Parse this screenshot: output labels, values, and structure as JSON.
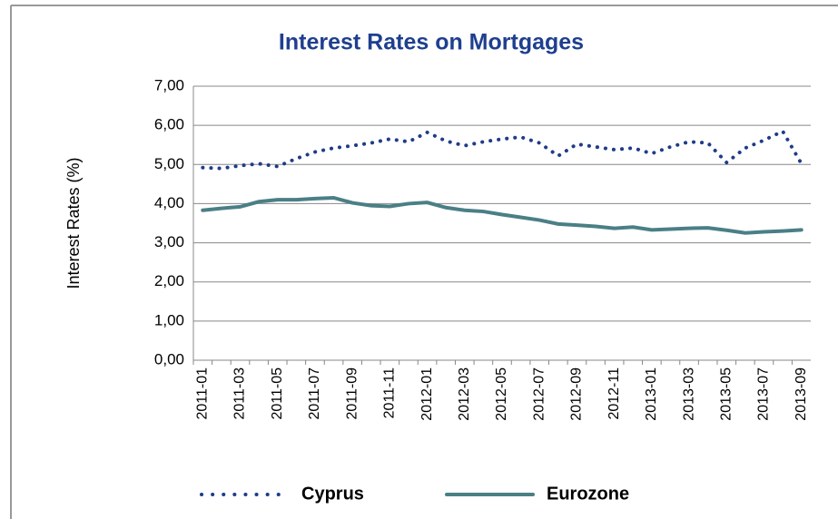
{
  "chart_data": {
    "type": "line",
    "title": "Interest Rates on Mortgages",
    "y_label": "Interest Rates (%)",
    "categories": [
      "2011-01",
      null,
      "2011-03",
      null,
      "2011-05",
      null,
      "2011-07",
      null,
      "2011-09",
      null,
      "2011-11",
      null,
      "2012-01",
      null,
      "2012-03",
      null,
      "2012-05",
      null,
      "2012-07",
      null,
      "2012-09",
      null,
      "2012-11",
      null,
      "2013-01",
      null,
      "2013-03",
      null,
      "2013-05",
      null,
      "2013-07",
      null,
      "2013-09"
    ],
    "series": [
      {
        "name": "Cyprus",
        "color": "#1f3c88",
        "style": "dotted",
        "values": [
          4.92,
          4.9,
          4.97,
          5.02,
          4.95,
          5.15,
          5.32,
          5.42,
          5.48,
          5.55,
          5.65,
          5.58,
          5.82,
          5.6,
          5.48,
          5.58,
          5.65,
          5.7,
          5.55,
          5.22,
          5.52,
          5.45,
          5.38,
          5.42,
          5.28,
          5.45,
          5.58,
          5.55,
          5.05,
          5.42,
          5.62,
          5.85,
          5.02
        ]
      },
      {
        "name": "Eurozone",
        "color": "#4a7f86",
        "style": "solid",
        "values": [
          3.83,
          3.88,
          3.92,
          4.05,
          4.1,
          4.1,
          4.13,
          4.15,
          4.02,
          3.95,
          3.93,
          4.0,
          4.03,
          3.9,
          3.83,
          3.8,
          3.72,
          3.65,
          3.58,
          3.48,
          3.45,
          3.42,
          3.37,
          3.4,
          3.33,
          3.35,
          3.37,
          3.38,
          3.32,
          3.25,
          3.28,
          3.3,
          3.33
        ]
      }
    ],
    "ylim": [
      0,
      7
    ],
    "yticks": [
      {
        "value": 0,
        "label": "0,00"
      },
      {
        "value": 1,
        "label": "1,00"
      },
      {
        "value": 2,
        "label": "2,00"
      },
      {
        "value": 3,
        "label": "3,00"
      },
      {
        "value": 4,
        "label": "4,00"
      },
      {
        "value": 5,
        "label": "5,00"
      },
      {
        "value": 6,
        "label": "6,00"
      },
      {
        "value": 7,
        "label": "7,00"
      }
    ],
    "grid": true,
    "legend": "bottom"
  }
}
